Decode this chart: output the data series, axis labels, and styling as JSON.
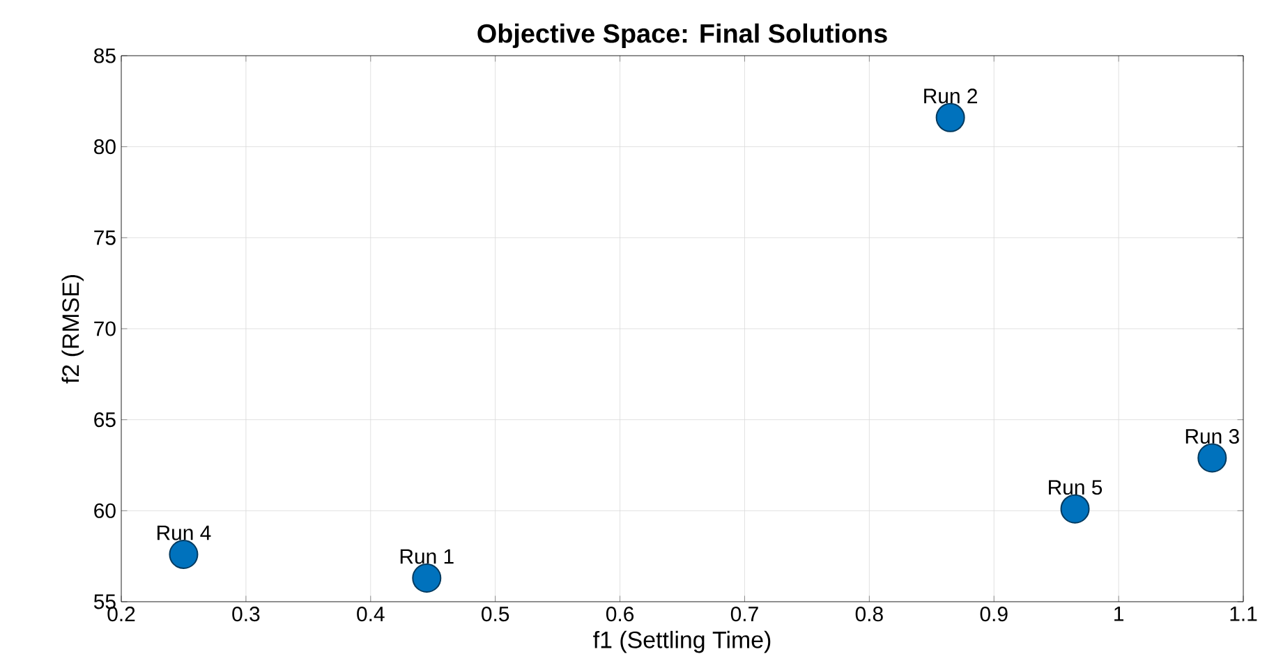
{
  "chart_data": {
    "type": "scatter",
    "title": "Objective Space: Final Solutions",
    "xlabel": "f1 (Settling Time)",
    "ylabel": "f2 (RMSE)",
    "x": [
      0.445,
      0.865,
      1.075,
      0.25,
      0.965
    ],
    "values": [
      56.3,
      81.6,
      62.9,
      57.6,
      60.1
    ],
    "color": "#0072bd",
    "marker": "circle",
    "grid": true,
    "xlim": [
      0.2,
      1.1
    ],
    "ylim": [
      55,
      85
    ],
    "xticks": [
      0.2,
      0.3,
      0.4,
      0.5,
      0.6,
      0.7,
      0.8,
      0.9,
      1,
      1.1
    ],
    "yticks": [
      55,
      60,
      65,
      70,
      75,
      80,
      85
    ],
    "annotations": [
      {
        "text": "Run 1",
        "x": 0.445,
        "y": 56.3
      },
      {
        "text": "Run 2",
        "x": 0.865,
        "y": 81.6
      },
      {
        "text": "Run 3",
        "x": 1.075,
        "y": 62.9
      },
      {
        "text": "Run 4",
        "x": 0.25,
        "y": 57.6
      },
      {
        "text": "Run 5",
        "x": 0.965,
        "y": 60.1
      }
    ]
  }
}
